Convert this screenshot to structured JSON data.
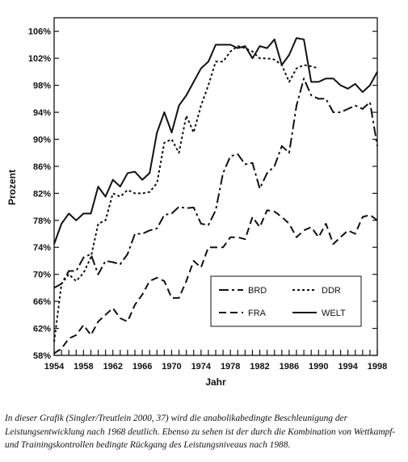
{
  "chart_data": {
    "type": "line",
    "title": "",
    "xlabel": "Jahr",
    "ylabel": "Prozent",
    "xlim": [
      1954,
      1998
    ],
    "ylim": [
      58,
      108
    ],
    "x_ticks": [
      "1954",
      "1958",
      "1962",
      "1966",
      "1970",
      "1974",
      "1978",
      "1982",
      "1986",
      "1990",
      "1994",
      "1998"
    ],
    "y_ticks": [
      "58%",
      "62%",
      "66%",
      "70%",
      "74%",
      "78%",
      "82%",
      "86%",
      "90%",
      "94%",
      "98%",
      "102%",
      "106%"
    ],
    "grid": false,
    "legend_position": "bottom-right",
    "series": [
      {
        "name": "BRD",
        "style": "long-dash-dot",
        "x": [
          1954,
          1955,
          1956,
          1957,
          1958,
          1959,
          1960,
          1961,
          1962,
          1963,
          1964,
          1965,
          1966,
          1967,
          1968,
          1969,
          1970,
          1971,
          1972,
          1973,
          1974,
          1975,
          1976,
          1977,
          1978,
          1979,
          1980,
          1981,
          1982,
          1983,
          1984,
          1985,
          1986,
          1987,
          1988,
          1989,
          1990,
          1991,
          1992,
          1993,
          1994,
          1995,
          1996,
          1997,
          1998
        ],
        "y": [
          68.0,
          68.6,
          70.5,
          70.5,
          72.5,
          73.0,
          70.0,
          72.0,
          71.8,
          71.5,
          73.0,
          76.0,
          76.0,
          76.5,
          76.8,
          78.8,
          79.0,
          80.0,
          79.8,
          79.9,
          77.5,
          77.3,
          79.5,
          85.0,
          87.5,
          87.8,
          86.3,
          86.5,
          82.7,
          85.0,
          86.0,
          89.0,
          88.0,
          95.0,
          99.0,
          96.5,
          96.0,
          96.0,
          94.0,
          94.0,
          94.5,
          95.0,
          94.5,
          95.5,
          89.0
        ]
      },
      {
        "name": "DDR",
        "style": "dotted",
        "x": [
          1954,
          1955,
          1956,
          1957,
          1958,
          1959,
          1960,
          1961,
          1962,
          1963,
          1964,
          1965,
          1966,
          1967,
          1968,
          1969,
          1970,
          1971,
          1972,
          1973,
          1974,
          1975,
          1976,
          1977,
          1978,
          1979,
          1980,
          1981,
          1982,
          1983,
          1984,
          1985,
          1986,
          1987,
          1988,
          1989,
          1990
        ],
        "y": [
          60.0,
          68.6,
          70.0,
          69.0,
          70.2,
          72.5,
          77.5,
          78.0,
          82.0,
          81.5,
          82.5,
          82.0,
          82.0,
          82.2,
          83.5,
          89.5,
          90.0,
          88.0,
          93.5,
          91.0,
          95.0,
          98.0,
          101.5,
          101.5,
          103.0,
          103.8,
          103.5,
          103.0,
          102.0,
          102.0,
          101.8,
          101.0,
          98.5,
          100.5,
          101.0,
          100.8,
          100.5
        ]
      },
      {
        "name": "FRA",
        "style": "dashed",
        "x": [
          1954,
          1955,
          1956,
          1957,
          1958,
          1959,
          1960,
          1961,
          1962,
          1963,
          1964,
          1965,
          1966,
          1967,
          1968,
          1969,
          1970,
          1971,
          1972,
          1973,
          1974,
          1975,
          1976,
          1977,
          1978,
          1979,
          1980,
          1981,
          1982,
          1983,
          1984,
          1985,
          1986,
          1987,
          1988,
          1989,
          1990,
          1991,
          1992,
          1993,
          1994,
          1995,
          1996,
          1997,
          1998
        ],
        "y": [
          58.3,
          59.0,
          60.5,
          61.0,
          62.5,
          61.0,
          63.0,
          64.0,
          65.0,
          63.5,
          63.0,
          65.5,
          67.0,
          69.0,
          69.5,
          69.0,
          66.5,
          66.5,
          69.0,
          72.0,
          71.0,
          74.0,
          74.0,
          74.0,
          75.5,
          75.5,
          75.2,
          78.5,
          77.0,
          79.5,
          79.3,
          78.5,
          77.5,
          75.5,
          76.5,
          77.0,
          75.5,
          77.5,
          74.5,
          75.5,
          76.5,
          76.0,
          78.5,
          78.8,
          78.0
        ]
      },
      {
        "name": "WELT",
        "style": "solid",
        "x": [
          1954,
          1955,
          1956,
          1957,
          1958,
          1959,
          1960,
          1961,
          1962,
          1963,
          1964,
          1965,
          1966,
          1967,
          1968,
          1969,
          1970,
          1971,
          1972,
          1973,
          1974,
          1975,
          1976,
          1977,
          1978,
          1979,
          1980,
          1981,
          1982,
          1983,
          1984,
          1985,
          1986,
          1987,
          1988,
          1989,
          1990,
          1991,
          1992,
          1993,
          1994,
          1995,
          1996,
          1997,
          1998
        ],
        "y": [
          74.5,
          77.5,
          79.0,
          78.0,
          79.0,
          79.0,
          83.0,
          81.5,
          84.0,
          83.0,
          85.0,
          85.2,
          84.0,
          85.0,
          91.0,
          94.0,
          91.0,
          95.0,
          96.5,
          98.5,
          100.5,
          101.5,
          104.0,
          104.0,
          104.0,
          103.5,
          103.8,
          102.0,
          103.8,
          103.5,
          104.8,
          101.0,
          102.5,
          105.0,
          104.8,
          98.5,
          98.5,
          99.0,
          99.0,
          98.0,
          97.5,
          98.2,
          97.0,
          98.0,
          100.0
        ]
      }
    ]
  },
  "caption": "In dieser Grafik (Singler/Treutlein 2000, 37) wird die anabolikabedingte Beschleunigung der Leistungsentwicklung nach 1968 deutlich. Ebenso zu sehen ist der durch die Kombination von Wettkampf- und Trainingskontrollen bedingte Rückgang des Leistungsniveaus nach 1988."
}
